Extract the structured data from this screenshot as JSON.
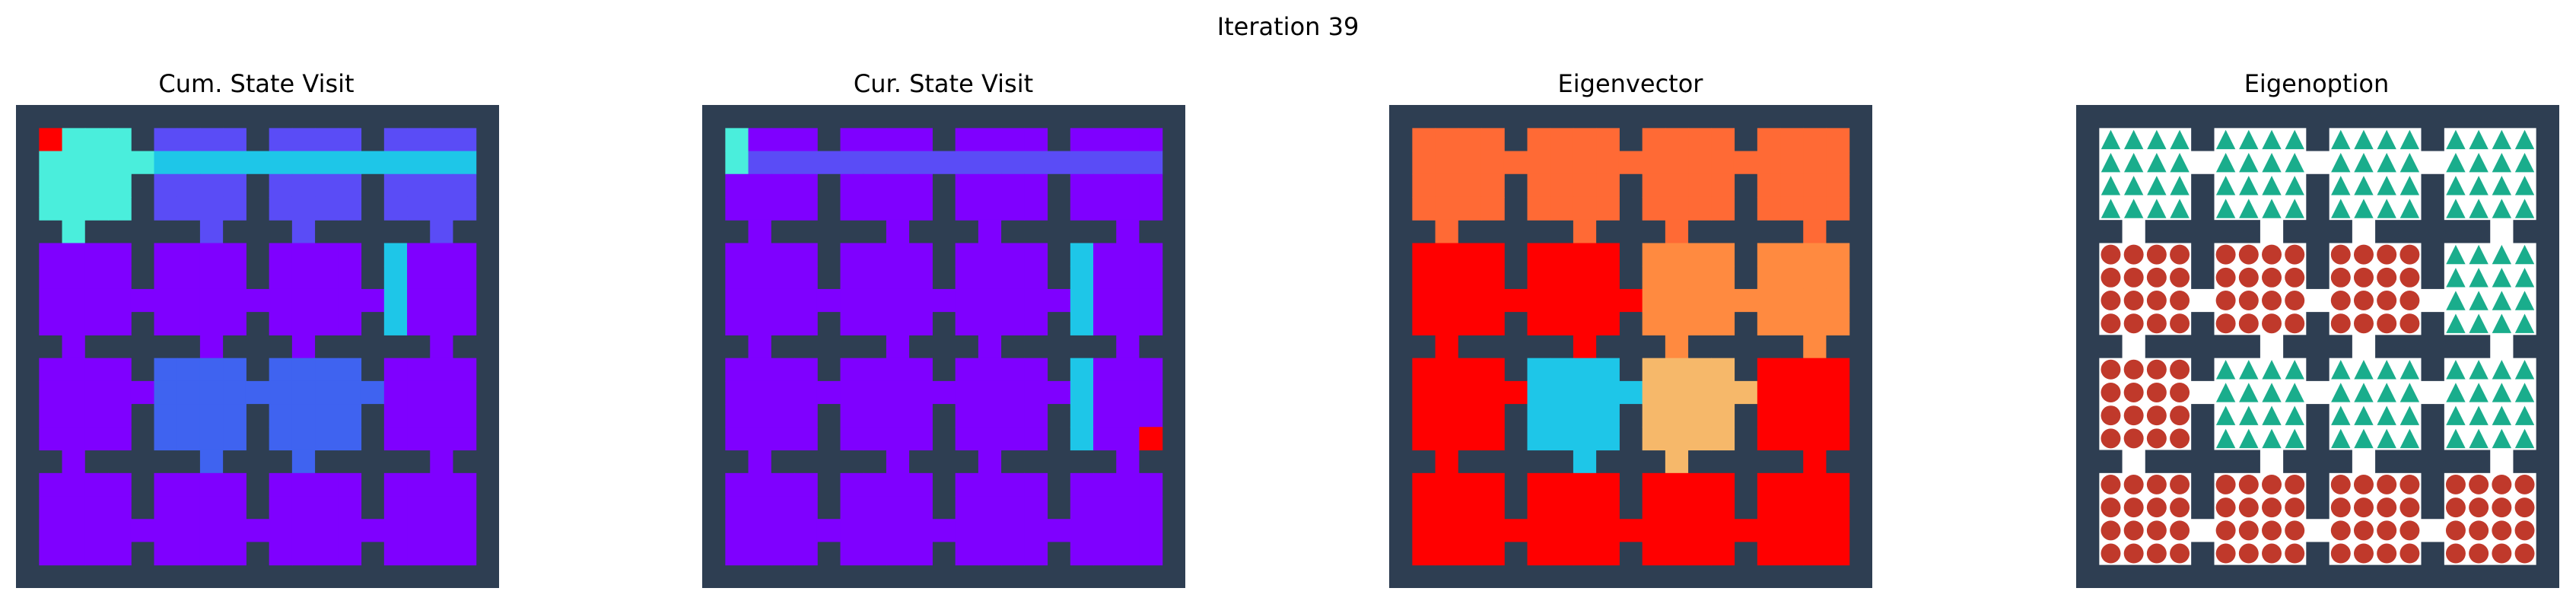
{
  "figure": {
    "suptitle": "Iteration 39"
  },
  "chart_data": [
    {
      "type": "heatmap",
      "title": "Cum. State Visit",
      "grid": "11 rooms world (4x4 rooms of 4x4 cells) with walls",
      "colormap": "rainbow",
      "highlights": [
        {
          "room": [
            0,
            0
          ],
          "cell": [
            0,
            0
          ],
          "color": "#ff0000"
        }
      ],
      "path_rooms": [
        [
          0,
          0
        ],
        [
          0,
          1
        ],
        [
          0,
          2
        ],
        [
          0,
          3
        ],
        [
          1,
          3
        ],
        [
          1,
          2
        ],
        [
          2,
          2
        ],
        [
          2,
          1
        ]
      ]
    },
    {
      "type": "heatmap",
      "title": "Cur. State Visit",
      "colormap": "rainbow",
      "path_rooms": [
        [
          0,
          0
        ],
        [
          0,
          1
        ],
        [
          0,
          2
        ],
        [
          0,
          3
        ],
        [
          1,
          3
        ],
        [
          2,
          3
        ]
      ]
    },
    {
      "type": "heatmap",
      "title": "Eigenvector",
      "colormap": "rainbow"
    },
    {
      "type": "table",
      "title": "Eigenoption",
      "legend": [
        {
          "symbol": "triangle",
          "color": "#1aad8c"
        },
        {
          "symbol": "circle",
          "color": "#c0392b"
        }
      ]
    }
  ],
  "colors": {
    "wall": "#2e3e52",
    "floor": "#ffffff",
    "violet": "#7f00ff",
    "blue": "#5a4cf6",
    "deep_blue": "#3f63f0",
    "teal": "#4aeedc",
    "cyan": "#1ec6e8",
    "red": "#ff0000",
    "orange": "#ff6a35",
    "triangle": "#1aad8c",
    "circle": "#c0392b"
  }
}
